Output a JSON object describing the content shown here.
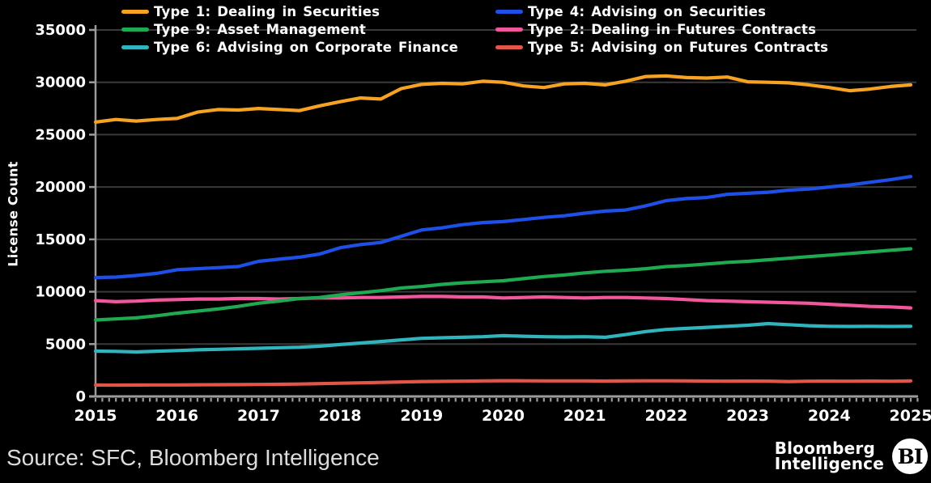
{
  "colors": {
    "background": "#000000",
    "text": "#FFFFFF",
    "grid": "#3A3A3A",
    "axis": "#9B9B9B",
    "source_text": "#DCDCDC"
  },
  "footer": {
    "source": "Source: SFC, Bloomberg Intelligence",
    "logo_line1": "Bloomberg",
    "logo_line2": "Intelligence",
    "logo_badge": "BI"
  },
  "chart_data": {
    "type": "line",
    "title": "",
    "xlabel": "",
    "ylabel": "License Count",
    "ylim": [
      0,
      35000
    ],
    "xlim": [
      2015,
      2025.1
    ],
    "y_ticks": [
      0,
      5000,
      10000,
      15000,
      20000,
      25000,
      30000,
      35000
    ],
    "x_ticks": [
      2015,
      2016,
      2017,
      2018,
      2019,
      2020,
      2021,
      2022,
      2023,
      2024,
      2025
    ],
    "grid": "horizontal",
    "legend_position": "top-two-columns",
    "x_start": 2015,
    "x_step": 0.25,
    "series": [
      {
        "name": "Type 1: Dealing in Securities",
        "color": "#F6A323",
        "legend_col": 0,
        "values": [
          26200,
          26450,
          26300,
          26450,
          26550,
          27150,
          27400,
          27350,
          27500,
          27400,
          27300,
          27750,
          28150,
          28500,
          28400,
          29400,
          29800,
          29900,
          29850,
          30100,
          30000,
          29650,
          29500,
          29850,
          29900,
          29750,
          30100,
          30550,
          30600,
          30450,
          30400,
          30500,
          30050,
          30000,
          29950,
          29750,
          29500,
          29200,
          29350,
          29600,
          29750
        ]
      },
      {
        "name": "Type 4: Advising on Securities",
        "color": "#1E50E8",
        "legend_col": 1,
        "values": [
          11350,
          11400,
          11550,
          11750,
          12100,
          12200,
          12300,
          12400,
          12900,
          13100,
          13300,
          13600,
          14200,
          14500,
          14700,
          15300,
          15900,
          16100,
          16400,
          16600,
          16700,
          16900,
          17100,
          17250,
          17500,
          17700,
          17800,
          18200,
          18700,
          18900,
          19000,
          19300,
          19400,
          19500,
          19700,
          19800,
          20000,
          20200,
          20450,
          20700,
          21000
        ]
      },
      {
        "name": "Type 9: Asset Management",
        "color": "#1FA950",
        "legend_col": 0,
        "values": [
          7300,
          7400,
          7500,
          7700,
          7950,
          8150,
          8350,
          8600,
          8900,
          9100,
          9350,
          9450,
          9700,
          9900,
          10100,
          10350,
          10500,
          10700,
          10850,
          10950,
          11050,
          11250,
          11450,
          11600,
          11800,
          11950,
          12050,
          12200,
          12400,
          12500,
          12650,
          12800,
          12900,
          13050,
          13200,
          13350,
          13500,
          13650,
          13800,
          13950,
          14100
        ]
      },
      {
        "name": "Type 2: Dealing in Futures Contracts",
        "color": "#F2579E",
        "legend_col": 1,
        "values": [
          9150,
          9050,
          9100,
          9200,
          9250,
          9300,
          9300,
          9350,
          9350,
          9300,
          9350,
          9400,
          9400,
          9450,
          9450,
          9500,
          9550,
          9550,
          9500,
          9500,
          9400,
          9450,
          9500,
          9450,
          9400,
          9450,
          9450,
          9400,
          9350,
          9250,
          9150,
          9100,
          9050,
          9000,
          8950,
          8900,
          8800,
          8700,
          8600,
          8550,
          8450
        ]
      },
      {
        "name": "Type 6: Advising on Corporate Finance",
        "color": "#30B5BF",
        "legend_col": 0,
        "values": [
          4330,
          4300,
          4250,
          4320,
          4380,
          4450,
          4500,
          4550,
          4600,
          4650,
          4700,
          4800,
          4950,
          5100,
          5250,
          5400,
          5550,
          5600,
          5650,
          5700,
          5800,
          5750,
          5700,
          5680,
          5700,
          5650,
          5900,
          6200,
          6400,
          6500,
          6600,
          6700,
          6800,
          6950,
          6850,
          6750,
          6700,
          6680,
          6700,
          6680,
          6700
        ]
      },
      {
        "name": "Type 5: Advising on Futures Contracts",
        "color": "#E25549",
        "legend_col": 1,
        "values": [
          1090,
          1080,
          1090,
          1100,
          1100,
          1110,
          1120,
          1130,
          1140,
          1160,
          1180,
          1220,
          1260,
          1300,
          1340,
          1380,
          1420,
          1440,
          1460,
          1480,
          1500,
          1490,
          1480,
          1480,
          1480,
          1470,
          1480,
          1490,
          1490,
          1480,
          1470,
          1460,
          1470,
          1460,
          1420,
          1450,
          1460,
          1450,
          1470,
          1450,
          1480
        ]
      }
    ]
  }
}
